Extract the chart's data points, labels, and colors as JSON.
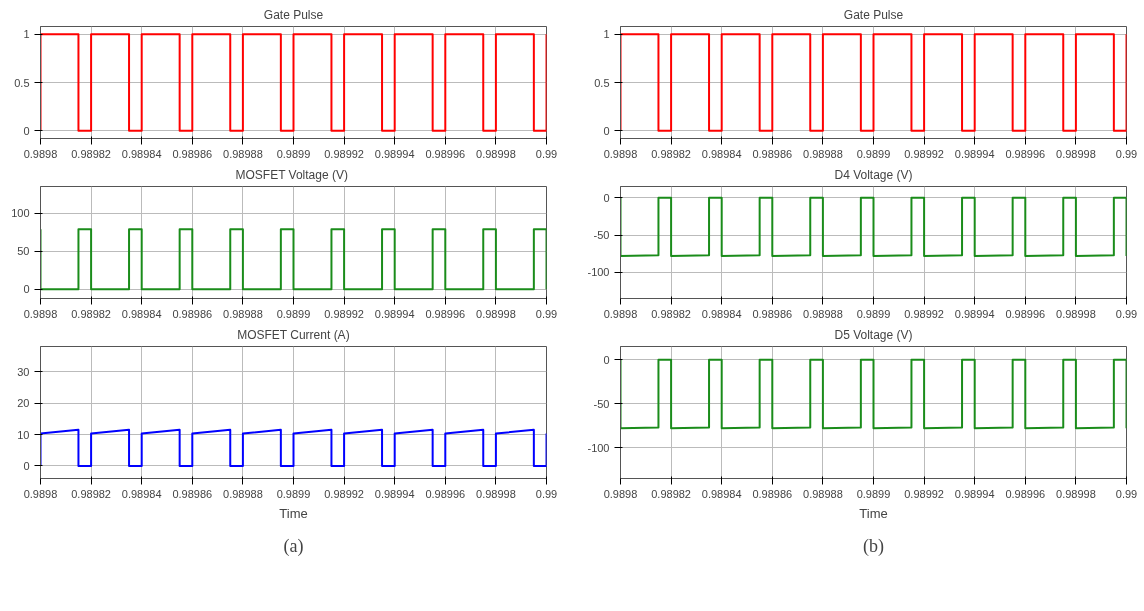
{
  "chart_data": [
    {
      "type": "line",
      "title": "Gate Pulse",
      "grid": true,
      "xlim": [
        0.9898,
        0.99
      ],
      "xticks": [
        0.9898,
        0.98982,
        0.98984,
        0.98986,
        0.98988,
        0.9899,
        0.98992,
        0.98994,
        0.98996,
        0.98998,
        0.99
      ],
      "ylim": [
        -0.08,
        1.08
      ],
      "yticks": [
        0,
        0.5,
        1
      ],
      "series": [
        {
          "color": "#ff0000",
          "x": [
            0.9898,
            0.9898,
            0.989815,
            0.989815,
            0.98982,
            0.98982,
            0.989835,
            0.989835,
            0.98984,
            0.98984,
            0.989855,
            0.989855,
            0.98986,
            0.98986,
            0.989875,
            0.989875,
            0.98988,
            0.98988,
            0.989895,
            0.989895,
            0.9899,
            0.9899,
            0.989915,
            0.989915,
            0.98992,
            0.98992,
            0.989935,
            0.989935,
            0.98994,
            0.98994,
            0.989955,
            0.989955,
            0.98996,
            0.98996,
            0.989975,
            0.989975,
            0.98998,
            0.98998,
            0.989995,
            0.989995,
            0.99,
            0.99
          ],
          "values": [
            0,
            1,
            1,
            0,
            0,
            1,
            1,
            0,
            0,
            1,
            1,
            0,
            0,
            1,
            1,
            0,
            0,
            1,
            1,
            0,
            0,
            1,
            1,
            0,
            0,
            1,
            1,
            0,
            0,
            1,
            1,
            0,
            0,
            1,
            1,
            0,
            0,
            1,
            1,
            0,
            0,
            1
          ]
        }
      ]
    },
    {
      "type": "line",
      "title": "MOSFET Voltage  (V)",
      "grid": true,
      "xlim": [
        0.9898,
        0.99
      ],
      "xticks": [
        0.9898,
        0.98982,
        0.98984,
        0.98986,
        0.98988,
        0.9899,
        0.98992,
        0.98994,
        0.98996,
        0.98998,
        0.99
      ],
      "ylim": [
        -12,
        135
      ],
      "yticks": [
        0,
        50,
        100
      ],
      "series": [
        {
          "color": "#1a8c1a",
          "x": [
            0.9898,
            0.9898,
            0.989815,
            0.989815,
            0.98982,
            0.98982,
            0.989835,
            0.989835,
            0.98984,
            0.98984,
            0.989855,
            0.989855,
            0.98986,
            0.98986,
            0.989875,
            0.989875,
            0.98988,
            0.98988,
            0.989895,
            0.989895,
            0.9899,
            0.9899,
            0.989915,
            0.989915,
            0.98992,
            0.98992,
            0.989935,
            0.989935,
            0.98994,
            0.98994,
            0.989955,
            0.989955,
            0.98996,
            0.98996,
            0.989975,
            0.989975,
            0.98998,
            0.98998,
            0.989995,
            0.989995,
            0.99,
            0.99
          ],
          "values": [
            79,
            0,
            0,
            79,
            79,
            0,
            0,
            79,
            79,
            0,
            0,
            79,
            79,
            0,
            0,
            79,
            79,
            0,
            0,
            79,
            79,
            0,
            0,
            79,
            79,
            0,
            0,
            79,
            79,
            0,
            0,
            79,
            79,
            0,
            0,
            79,
            79,
            0,
            0,
            79,
            79,
            0
          ]
        }
      ]
    },
    {
      "type": "line",
      "title": "MOSFET Current (A)",
      "xlabel": "Time",
      "annotations": [
        "(a)"
      ],
      "grid": true,
      "xlim": [
        0.9898,
        0.99
      ],
      "xticks": [
        0.9898,
        0.98982,
        0.98984,
        0.98986,
        0.98988,
        0.9899,
        0.98992,
        0.98994,
        0.98996,
        0.98998,
        0.99
      ],
      "ylim": [
        -4,
        38
      ],
      "yticks": [
        0,
        10,
        20,
        30
      ],
      "series": [
        {
          "color": "#0000ff",
          "x": [
            0.9898,
            0.9898,
            0.989815,
            0.989815,
            0.98982,
            0.98982,
            0.989835,
            0.989835,
            0.98984,
            0.98984,
            0.989855,
            0.989855,
            0.98986,
            0.98986,
            0.989875,
            0.989875,
            0.98988,
            0.98988,
            0.989895,
            0.989895,
            0.9899,
            0.9899,
            0.989915,
            0.989915,
            0.98992,
            0.98992,
            0.989935,
            0.989935,
            0.98994,
            0.98994,
            0.989955,
            0.989955,
            0.98996,
            0.98996,
            0.989975,
            0.989975,
            0.98998,
            0.98998,
            0.989995,
            0.989995,
            0.99,
            0.99
          ],
          "values": [
            0,
            10.3,
            11.5,
            0,
            0,
            10.3,
            11.5,
            0,
            0,
            10.3,
            11.5,
            0,
            0,
            10.3,
            11.5,
            0,
            0,
            10.3,
            11.5,
            0,
            0,
            10.3,
            11.5,
            0,
            0,
            10.3,
            11.5,
            0,
            0,
            10.3,
            11.5,
            0,
            0,
            10.3,
            11.5,
            0,
            0,
            10.3,
            11.5,
            0,
            0,
            10.3
          ]
        }
      ]
    },
    {
      "type": "line",
      "title": "Gate Pulse",
      "grid": true,
      "xlim": [
        0.9898,
        0.99
      ],
      "xticks": [
        0.9898,
        0.98982,
        0.98984,
        0.98986,
        0.98988,
        0.9899,
        0.98992,
        0.98994,
        0.98996,
        0.98998,
        0.99
      ],
      "ylim": [
        -0.08,
        1.08
      ],
      "yticks": [
        0,
        0.5,
        1
      ],
      "series": [
        {
          "color": "#ff0000",
          "x": [
            0.9898,
            0.9898,
            0.989815,
            0.989815,
            0.98982,
            0.98982,
            0.989835,
            0.989835,
            0.98984,
            0.98984,
            0.989855,
            0.989855,
            0.98986,
            0.98986,
            0.989875,
            0.989875,
            0.98988,
            0.98988,
            0.989895,
            0.989895,
            0.9899,
            0.9899,
            0.989915,
            0.989915,
            0.98992,
            0.98992,
            0.989935,
            0.989935,
            0.98994,
            0.98994,
            0.989955,
            0.989955,
            0.98996,
            0.98996,
            0.989975,
            0.989975,
            0.98998,
            0.98998,
            0.989995,
            0.989995,
            0.99,
            0.99
          ],
          "values": [
            0,
            1,
            1,
            0,
            0,
            1,
            1,
            0,
            0,
            1,
            1,
            0,
            0,
            1,
            1,
            0,
            0,
            1,
            1,
            0,
            0,
            1,
            1,
            0,
            0,
            1,
            1,
            0,
            0,
            1,
            1,
            0,
            0,
            1,
            1,
            0,
            0,
            1,
            1,
            0,
            0,
            1
          ]
        }
      ]
    },
    {
      "type": "line",
      "title": "D4 Voltage (V)",
      "grid": true,
      "xlim": [
        0.9898,
        0.99
      ],
      "xticks": [
        0.9898,
        0.98982,
        0.98984,
        0.98986,
        0.98988,
        0.9899,
        0.98992,
        0.98994,
        0.98996,
        0.98998,
        0.99
      ],
      "ylim": [
        -135,
        15
      ],
      "yticks": [
        -100,
        -50,
        0
      ],
      "series": [
        {
          "color": "#1a8c1a",
          "x": [
            0.9898,
            0.9898,
            0.989815,
            0.989815,
            0.98982,
            0.98982,
            0.989835,
            0.989835,
            0.98984,
            0.98984,
            0.989855,
            0.989855,
            0.98986,
            0.98986,
            0.989875,
            0.989875,
            0.98988,
            0.98988,
            0.989895,
            0.989895,
            0.9899,
            0.9899,
            0.989915,
            0.989915,
            0.98992,
            0.98992,
            0.989935,
            0.989935,
            0.98994,
            0.98994,
            0.989955,
            0.989955,
            0.98996,
            0.98996,
            0.989975,
            0.989975,
            0.98998,
            0.98998,
            0.989995,
            0.989995,
            0.99,
            0.99
          ],
          "values": [
            0,
            -78,
            -77,
            0,
            0,
            -78,
            -77,
            0,
            0,
            -78,
            -77,
            0,
            0,
            -78,
            -77,
            0,
            0,
            -78,
            -77,
            0,
            0,
            -78,
            -77,
            0,
            0,
            -78,
            -77,
            0,
            0,
            -78,
            -77,
            0,
            0,
            -78,
            -77,
            0,
            0,
            -78,
            -77,
            0,
            0,
            -78
          ]
        }
      ]
    },
    {
      "type": "line",
      "title": "D5 Voltage (V)",
      "xlabel": "Time",
      "annotations": [
        "(b)"
      ],
      "grid": true,
      "xlim": [
        0.9898,
        0.99
      ],
      "xticks": [
        0.9898,
        0.98982,
        0.98984,
        0.98986,
        0.98988,
        0.9899,
        0.98992,
        0.98994,
        0.98996,
        0.98998,
        0.99
      ],
      "ylim": [
        -135,
        15
      ],
      "yticks": [
        -100,
        -50,
        0
      ],
      "series": [
        {
          "color": "#1a8c1a",
          "x": [
            0.9898,
            0.9898,
            0.989815,
            0.989815,
            0.98982,
            0.98982,
            0.989835,
            0.989835,
            0.98984,
            0.98984,
            0.989855,
            0.989855,
            0.98986,
            0.98986,
            0.989875,
            0.989875,
            0.98988,
            0.98988,
            0.989895,
            0.989895,
            0.9899,
            0.9899,
            0.989915,
            0.989915,
            0.98992,
            0.98992,
            0.989935,
            0.989935,
            0.98994,
            0.98994,
            0.989955,
            0.989955,
            0.98996,
            0.98996,
            0.989975,
            0.989975,
            0.98998,
            0.98998,
            0.989995,
            0.989995,
            0.99,
            0.99
          ],
          "values": [
            0,
            -78,
            -77,
            0,
            0,
            -78,
            -77,
            0,
            0,
            -78,
            -77,
            0,
            0,
            -78,
            -77,
            0,
            0,
            -78,
            -77,
            0,
            0,
            -78,
            -77,
            0,
            0,
            -78,
            -77,
            0,
            0,
            -78,
            -77,
            0,
            0,
            -78,
            -77,
            0,
            0,
            -78,
            -77,
            0,
            0,
            -78
          ]
        }
      ]
    }
  ]
}
